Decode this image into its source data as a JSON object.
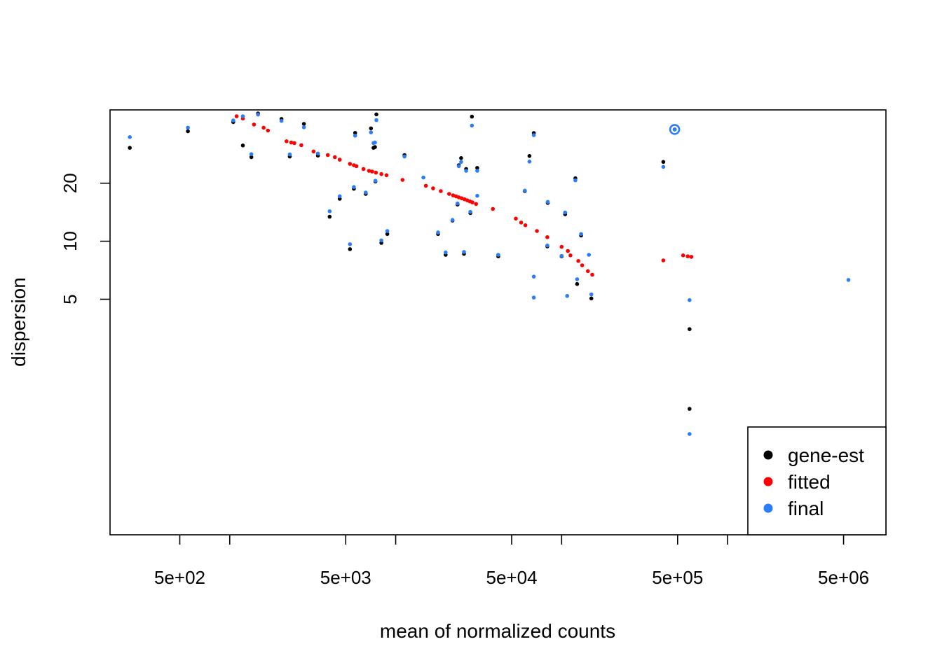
{
  "chart_data": {
    "type": "scatter",
    "title": "",
    "xlabel": "mean of normalized counts",
    "ylabel": "dispersion",
    "x_scale": "log",
    "y_scale": "log",
    "xlim": [
      190,
      9000000
    ],
    "ylim": [
      0.3,
      48
    ],
    "x_ticks": [
      500,
      5000,
      50000,
      500000,
      5000000
    ],
    "x_tick_labels": [
      "5e+02",
      "5e+03",
      "5e+04",
      "5e+05",
      "5e+06"
    ],
    "x_minor_ticks": [
      1000,
      10000,
      100000,
      1000000
    ],
    "y_ticks": [
      5,
      10,
      20
    ],
    "y_tick_labels": [
      "5",
      "10",
      "20"
    ],
    "grid": false,
    "legend_position": "bottom-right",
    "highlighted_point": [
      480000,
      38
    ],
    "colors": {
      "gene-est": "#000000",
      "fitted": "#ff0000",
      "final": "#2c7ef7"
    },
    "series": [
      {
        "name": "gene-est",
        "color": "#000000",
        "points": [
          [
            250,
            30.5
          ],
          [
            560,
            37.2
          ],
          [
            1050,
            41.5
          ],
          [
            1200,
            31.4
          ],
          [
            1350,
            27.3
          ],
          [
            1480,
            46
          ],
          [
            2050,
            43.1
          ],
          [
            2300,
            27.5
          ],
          [
            2800,
            40.6
          ],
          [
            3400,
            27.8
          ],
          [
            4000,
            13.4
          ],
          [
            4600,
            16.6
          ],
          [
            5300,
            9.1
          ],
          [
            5600,
            18.7
          ],
          [
            5700,
            36.5
          ],
          [
            6600,
            17.6
          ],
          [
            7100,
            38.5
          ],
          [
            7350,
            30.5
          ],
          [
            7500,
            30.8
          ],
          [
            7550,
            20.4
          ],
          [
            7650,
            45.5
          ],
          [
            8200,
            9.8
          ],
          [
            8900,
            10.9
          ],
          [
            11300,
            28
          ],
          [
            18000,
            10.9
          ],
          [
            20000,
            8.5
          ],
          [
            22000,
            12.8
          ],
          [
            23600,
            15.5
          ],
          [
            24000,
            24.8
          ],
          [
            24800,
            27
          ],
          [
            25800,
            8.6
          ],
          [
            26600,
            23.7
          ],
          [
            28200,
            14
          ],
          [
            28800,
            44.3
          ],
          [
            31000,
            24
          ],
          [
            41500,
            8.35
          ],
          [
            60000,
            18.2
          ],
          [
            64000,
            27.7
          ],
          [
            68000,
            36.4
          ],
          [
            82000,
            9.4
          ],
          [
            82500,
            15.8
          ],
          [
            100000,
            8.35
          ],
          [
            105000,
            13.8
          ],
          [
            121000,
            21.2
          ],
          [
            124000,
            6.0
          ],
          [
            131000,
            10.7
          ],
          [
            151000,
            5.05
          ],
          [
            410000,
            25.8
          ],
          [
            480000,
            38
          ],
          [
            590000,
            3.5
          ],
          [
            590000,
            1.35
          ]
        ]
      },
      {
        "name": "fitted",
        "color": "#ff0000",
        "points": [
          [
            1100,
            44.5
          ],
          [
            1200,
            43.3
          ],
          [
            1400,
            40.3
          ],
          [
            1600,
            38.8
          ],
          [
            1700,
            37.5
          ],
          [
            2200,
            33
          ],
          [
            2350,
            32.5
          ],
          [
            2450,
            32.3
          ],
          [
            2700,
            31.5
          ],
          [
            3200,
            29.2
          ],
          [
            3900,
            28
          ],
          [
            4300,
            27.3
          ],
          [
            4600,
            26.5
          ],
          [
            5300,
            25.2
          ],
          [
            5600,
            24.8
          ],
          [
            5800,
            24.5
          ],
          [
            6400,
            23.7
          ],
          [
            6900,
            23.2
          ],
          [
            7200,
            23.0
          ],
          [
            7600,
            22.7
          ],
          [
            8200,
            22.3
          ],
          [
            8800,
            22
          ],
          [
            11000,
            20.8
          ],
          [
            15200,
            19.4
          ],
          [
            16800,
            18.8
          ],
          [
            18700,
            18.2
          ],
          [
            21000,
            17.6
          ],
          [
            22200,
            17.3
          ],
          [
            23100,
            17.1
          ],
          [
            24000,
            16.9
          ],
          [
            25000,
            16.7
          ],
          [
            26000,
            16.5
          ],
          [
            27000,
            16.3
          ],
          [
            28000,
            16.1
          ],
          [
            29000,
            15.9
          ],
          [
            30500,
            15.6
          ],
          [
            38500,
            14.7
          ],
          [
            53000,
            13.1
          ],
          [
            57000,
            12.5
          ],
          [
            60500,
            12.1
          ],
          [
            71000,
            11.3
          ],
          [
            82000,
            10.5
          ],
          [
            100000,
            9.35
          ],
          [
            109000,
            8.9
          ],
          [
            113000,
            8.45
          ],
          [
            126000,
            7.9
          ],
          [
            133000,
            7.5
          ],
          [
            144000,
            7.0
          ],
          [
            153000,
            6.7
          ],
          [
            410000,
            7.95
          ],
          [
            540000,
            8.45
          ],
          [
            575000,
            8.35
          ],
          [
            605000,
            8.3
          ]
        ]
      },
      {
        "name": "final",
        "color": "#2c7ef7",
        "points": [
          [
            250,
            34.7
          ],
          [
            560,
            38.8
          ],
          [
            1050,
            42.3
          ],
          [
            1200,
            44.5
          ],
          [
            1350,
            28.3
          ],
          [
            1480,
            45.4
          ],
          [
            2050,
            42.1
          ],
          [
            2300,
            28.2
          ],
          [
            2800,
            39
          ],
          [
            3400,
            28.5
          ],
          [
            4000,
            14.3
          ],
          [
            4600,
            17.1
          ],
          [
            5300,
            9.65
          ],
          [
            5600,
            19.1
          ],
          [
            5700,
            35.3
          ],
          [
            6600,
            17.9
          ],
          [
            7100,
            36.7
          ],
          [
            7350,
            32.3
          ],
          [
            7500,
            32.5
          ],
          [
            7550,
            20.6
          ],
          [
            7650,
            42.5
          ],
          [
            8200,
            10.1
          ],
          [
            8900,
            11.3
          ],
          [
            11300,
            27.5
          ],
          [
            14700,
            21.4
          ],
          [
            18000,
            11.1
          ],
          [
            20000,
            8.75
          ],
          [
            22000,
            12.9
          ],
          [
            23600,
            15.7
          ],
          [
            24000,
            24.5
          ],
          [
            24800,
            25.8
          ],
          [
            25800,
            8.8
          ],
          [
            26600,
            23.2
          ],
          [
            28200,
            14.2
          ],
          [
            28800,
            39.8
          ],
          [
            31000,
            23.2
          ],
          [
            31000,
            17.2
          ],
          [
            41500,
            8.5
          ],
          [
            60000,
            18.3
          ],
          [
            64000,
            25.9
          ],
          [
            68000,
            35.5
          ],
          [
            68000,
            6.55
          ],
          [
            68000,
            5.1
          ],
          [
            82000,
            9.5
          ],
          [
            82500,
            16.0
          ],
          [
            100000,
            8.4
          ],
          [
            105000,
            14.1
          ],
          [
            108000,
            5.2
          ],
          [
            121000,
            20.7
          ],
          [
            124000,
            6.35
          ],
          [
            131000,
            10.9
          ],
          [
            146000,
            8.5
          ],
          [
            151000,
            5.3
          ],
          [
            410000,
            24.3
          ],
          [
            480000,
            38
          ],
          [
            590000,
            4.95
          ],
          [
            590000,
            1.0
          ],
          [
            5350000,
            6.3
          ]
        ]
      }
    ]
  }
}
